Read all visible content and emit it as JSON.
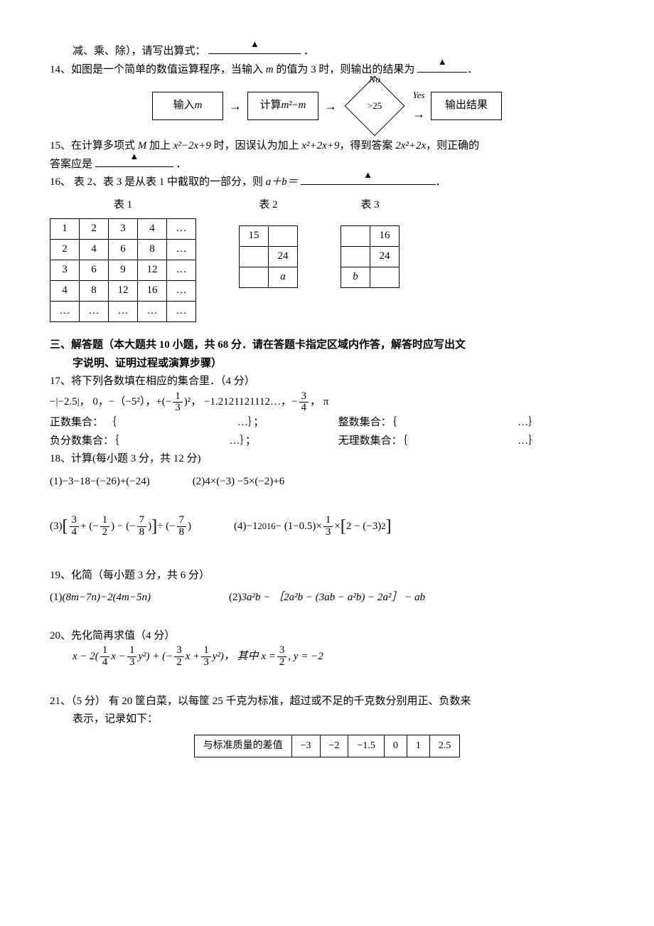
{
  "q13_tail": "减、乘、除），请写出算式：",
  "q13_blank": "",
  "period": "．",
  "q14": {
    "text_a": "14、如图是一个简单的数值运算程序，当输入 ",
    "var_m": "m",
    "text_b": " 的值为 3 时，则输出的结果为",
    "flow": {
      "in_label_a": "输入 ",
      "in_label_b": "m",
      "calc_a": "计算 ",
      "calc_b": "m",
      "calc_c": "²−",
      "calc_d": "m",
      "cond": ">25",
      "no": "No",
      "yes": "Yes",
      "out": "输出结果"
    }
  },
  "q15": {
    "a": "15、在计算多项式 ",
    "M": "M",
    "b": " 加上 ",
    "e1": "x²−2x+9",
    "c": " 时，因误认为加上 ",
    "e2": "x²+2x+9",
    "d": "，得到答案 ",
    "e3": "2x²+2x",
    "e": "，则正确的",
    "f": "答案应是"
  },
  "q16": {
    "text_a": "16、 表 2、表 3 是从表 1 中截取的一部分，则 ",
    "expr": "a＋b＝",
    "table1_cap": "表 1",
    "table2_cap": "表 2",
    "table3_cap": "表 3",
    "t1": [
      [
        "1",
        "2",
        "3",
        "4",
        "…"
      ],
      [
        "2",
        "4",
        "6",
        "8",
        "…"
      ],
      [
        "3",
        "6",
        "9",
        "12",
        "…"
      ],
      [
        "4",
        "8",
        "12",
        "16",
        "…"
      ],
      [
        "…",
        "…",
        "…",
        "…",
        "…"
      ]
    ],
    "t2": [
      [
        "15",
        ""
      ],
      [
        "",
        "24"
      ],
      [
        "",
        "a"
      ]
    ],
    "t3": [
      [
        "",
        "16"
      ],
      [
        "",
        "24"
      ],
      [
        "b",
        ""
      ]
    ]
  },
  "section3": {
    "title": "三、解答题（本大题共 10 小题，共 68 分．请在答题卡指定区域内作答，解答时应写出文",
    "title2": "字说明、证明过程或演算步骤）"
  },
  "q17": {
    "head": "17、将下列各数填在相应的集合里．（4 分）",
    "items_a": "−|−2.5|， 0，−（−5²），+(−",
    "items_b": ")²， −1.2121121112…，",
    "items_c": "，  π",
    "frac1_num": "1",
    "frac1_den": "3",
    "frac2_num": "3",
    "frac2_den": "4",
    "neg2": " −",
    "row1a": "正数集合：  ｛",
    "row1b": "…｝；",
    "row1c": "整数集合：｛",
    "row1d": "…｝",
    "row2a": "负分数集合：｛",
    "row2b": "…｝；",
    "row2c": "无理数集合：｛",
    "row2d": "…｝"
  },
  "q18": {
    "head": "18、计算(每小题 3 分，共 12 分)",
    "p1_lbl": "(1)  ",
    "p1": "−3−18−(−26)+(−24)",
    "p2_lbl": "(2) ",
    "p2": "4×(−3) −5×(−2)+6",
    "p3_lbl": "(3)  ",
    "p3_a": "+ (−",
    "p3_b": ") − (−",
    "p3_c": ")",
    "p3_d": " ÷ (−",
    "p3_e": ")",
    "f3a_n": "3",
    "f3a_d": "4",
    "f3b_n": "1",
    "f3b_d": "2",
    "f3c_n": "7",
    "f3c_d": "8",
    "f3d_n": "7",
    "f3d_d": "8",
    "p4_lbl": "(4) ",
    "p4_a": "−1",
    "p4_exp": "2016",
    "p4_b": " − (1−0.5)×",
    "p4_c": "×",
    "p4_d": "2 − (−3)",
    "p4_e": "2",
    "f4_n": "1",
    "f4_d": "3"
  },
  "q19": {
    "head": "19、化简（每小题 3 分，共 6 分）",
    "p1_lbl": "(1)  ",
    "p1": "(8m−7n)−2(4m−5n)",
    "p2_lbl": "(2)  ",
    "p2": "3a²b − ［2a²b − (3ab − a²b) − 2a²］ − ab"
  },
  "q20": {
    "head": "20、先化简再求值（4 分）",
    "pre": "x − 2(",
    "mid1": "x − ",
    "mid2": "y²) + (−",
    "mid3": "x + ",
    "mid4": "y²)，  其中 x = ",
    "tail": ", y = −2",
    "fA_n": "1",
    "fA_d": "4",
    "fB_n": "1",
    "fB_d": "3",
    "fC_n": "3",
    "fC_d": "2",
    "fD_n": "1",
    "fD_d": "3",
    "fE_n": "3",
    "fE_d": "2"
  },
  "q21": {
    "head_a": "21、（5 分）  有 20 筐白菜，以每筐 25 千克为标准，超过或不足的千克数分别用正、负数来",
    "head_b": "表示，记录如下：",
    "table": {
      "label": "与标准质量的差值",
      "v": [
        "−3",
        "−2",
        "−1.5",
        "0",
        "1",
        "2.5"
      ]
    }
  }
}
